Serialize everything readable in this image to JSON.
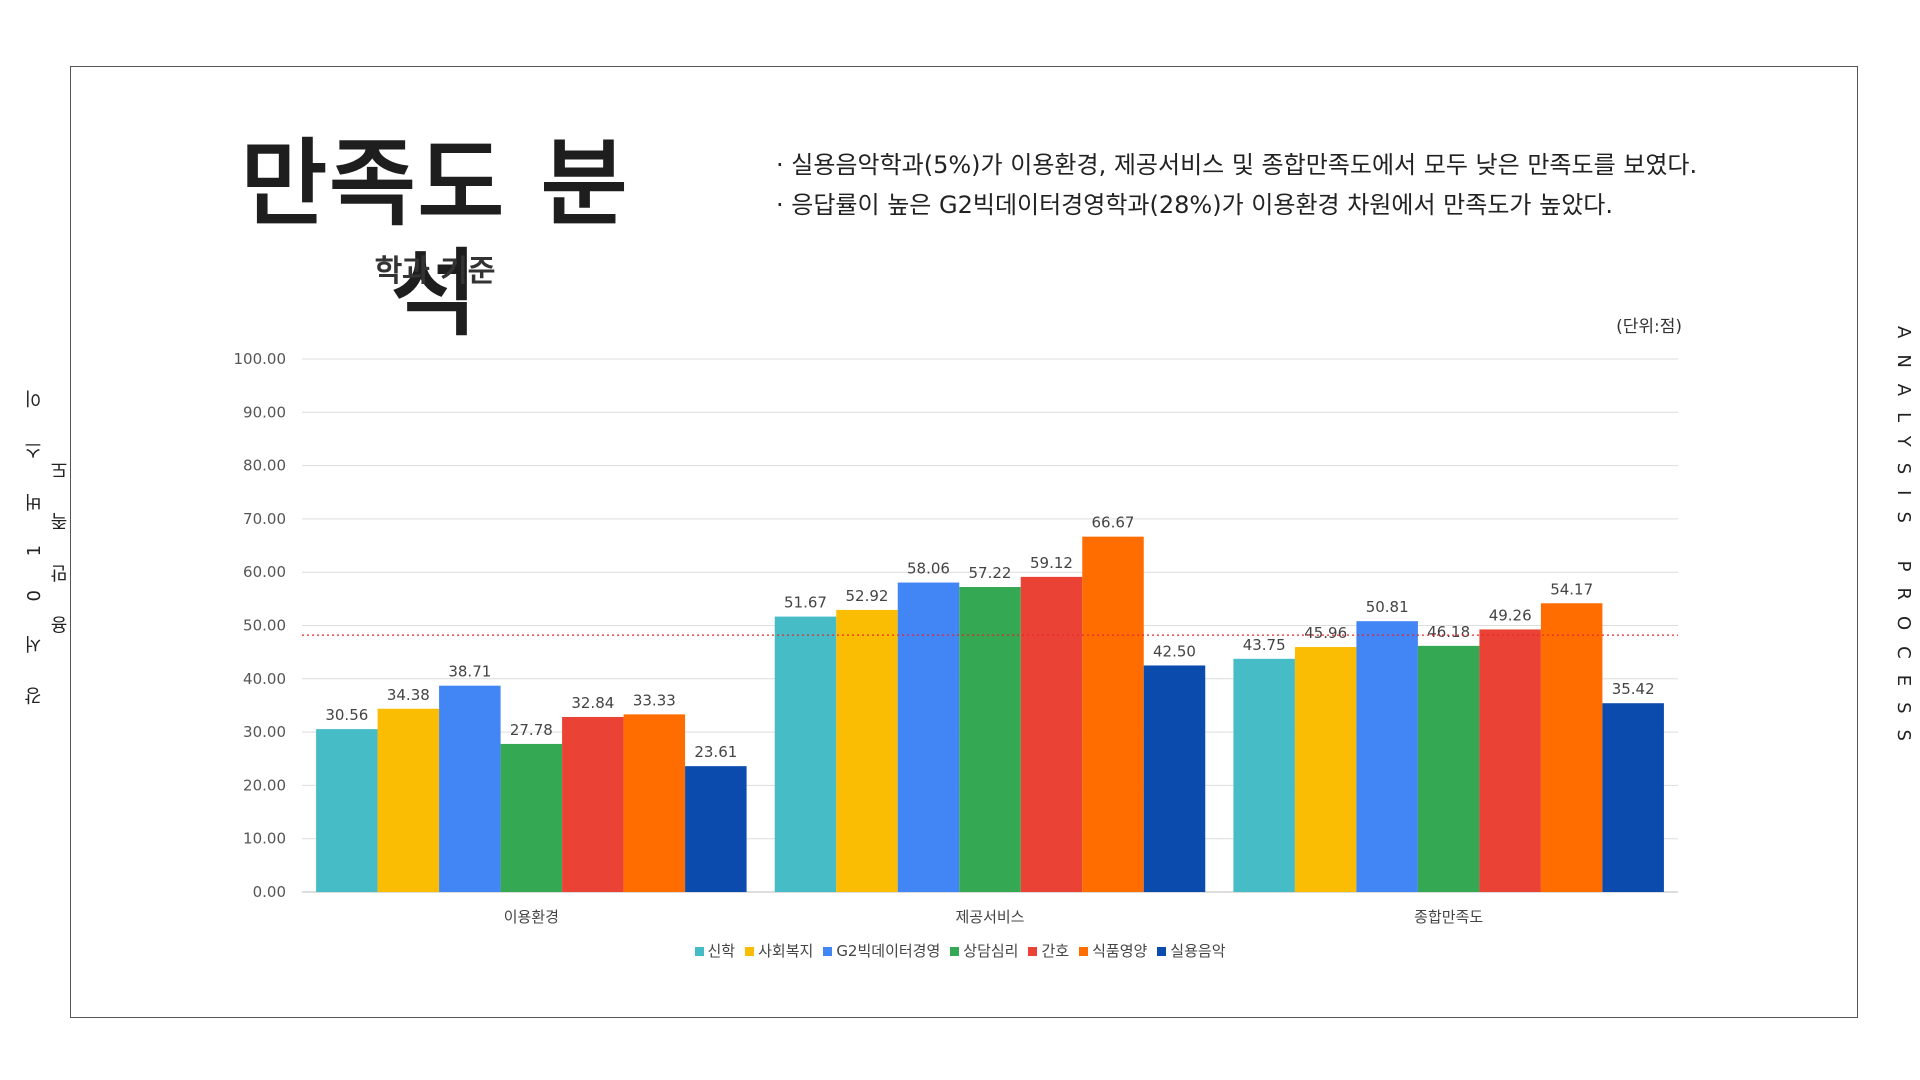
{
  "side_left_text": "강 서 0 1 버 스 이 용 만 족 도",
  "side_right_text": "ANALYSIS PROCESS",
  "title": "만족도 분석",
  "subtitle": "학과 기준",
  "notes": [
    "· 실용음악학과(5%)가 이용환경, 제공서비스 및 종합만족도에서 모두 낮은 만족도를 보였다.",
    "· 응답률이 높은 G2빅데이터경영학과(28%)가 이용환경 차원에서 만족도가 높았다."
  ],
  "unit_label": "(단위:점)",
  "chart_data": {
    "type": "bar",
    "categories": [
      "이용환경",
      "제공서비스",
      "종합만족도"
    ],
    "series": [
      {
        "name": "신학",
        "color": "#46bcc6",
        "values": [
          30.56,
          51.67,
          43.75
        ]
      },
      {
        "name": "사회복지",
        "color": "#fbbc04",
        "values": [
          34.38,
          52.92,
          45.96
        ]
      },
      {
        "name": "G2빅데이터경영",
        "color": "#4285f4",
        "values": [
          38.71,
          58.06,
          50.81
        ]
      },
      {
        "name": "상담심리",
        "color": "#34a853",
        "values": [
          27.78,
          57.22,
          46.18
        ]
      },
      {
        "name": "간호",
        "color": "#ea4335",
        "values": [
          32.84,
          59.12,
          49.26
        ]
      },
      {
        "name": "식품영양",
        "color": "#ff6d00",
        "values": [
          33.33,
          66.67,
          54.17
        ]
      },
      {
        "name": "실용음악",
        "color": "#0b4bad",
        "values": [
          23.61,
          42.5,
          35.42
        ],
        "label_color": "#e8262a"
      }
    ],
    "y_ticks": [
      "0.00",
      "10.00",
      "20.00",
      "30.00",
      "40.00",
      "50.00",
      "60.00",
      "70.00",
      "80.00",
      "90.00",
      "100.00"
    ],
    "ylim": [
      0,
      100
    ],
    "reference_line": 48.2,
    "reference_line_color": "#e8262a",
    "grid": true,
    "legend_position": "bottom"
  }
}
